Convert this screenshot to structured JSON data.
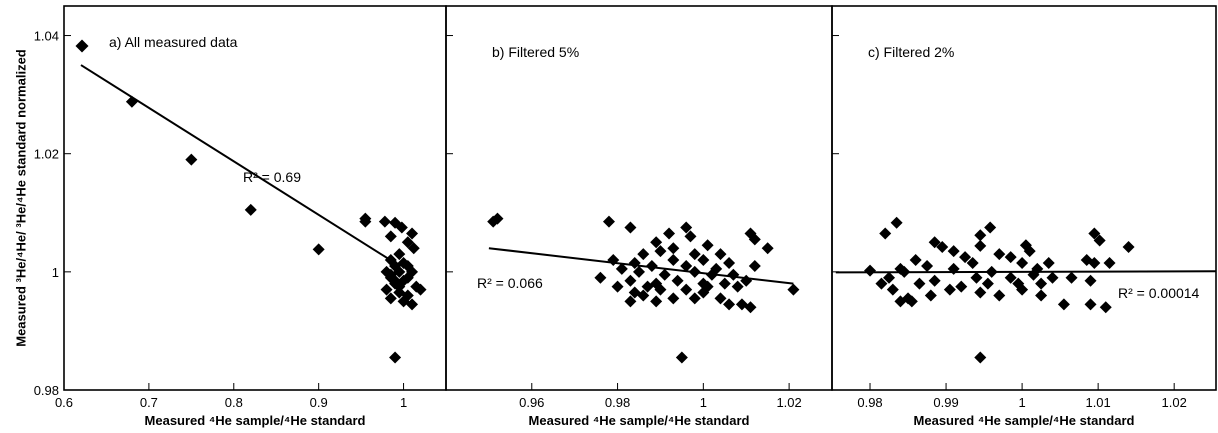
{
  "figure": {
    "y_axis_title": "Measured ³He/⁴He/ ³He/⁴He standard normalized",
    "legend_marker": "diamond"
  },
  "chart_data": [
    {
      "type": "scatter",
      "panel_label": "a) All measured data",
      "xlabel": "Measured ⁴He sample/⁴He standard",
      "xlim": [
        0.6,
        1.05
      ],
      "ylim": [
        0.98,
        1.045
      ],
      "x_ticks": [
        0.6,
        0.7,
        0.8,
        0.9,
        1.0
      ],
      "x_tick_labels": [
        "0.6",
        "0.7",
        "0.8",
        "0.9",
        "1"
      ],
      "y_ticks": [
        0.98,
        1.0,
        1.02,
        1.04
      ],
      "y_tick_labels": [
        "0.98",
        "1",
        "1.02",
        "1.04"
      ],
      "r2_label": "R² = 0.69",
      "fit": {
        "x": [
          0.62,
          0.99
        ],
        "y": [
          1.035,
          1.0015
        ]
      },
      "points": [
        [
          0.68,
          1.0288
        ],
        [
          0.75,
          1.019
        ],
        [
          0.82,
          1.0105
        ],
        [
          0.9,
          1.0038
        ],
        [
          0.955,
          1.0085
        ],
        [
          0.955,
          1.009
        ],
        [
          0.978,
          1.0085
        ],
        [
          0.99,
          1.0083
        ],
        [
          0.985,
          1.006
        ],
        [
          0.998,
          1.0075
        ],
        [
          1.01,
          1.0065
        ],
        [
          1.005,
          1.005
        ],
        [
          1.012,
          1.004
        ],
        [
          0.995,
          1.003
        ],
        [
          0.985,
          1.002
        ],
        [
          1.0,
          1.0015
        ],
        [
          0.99,
          1.001
        ],
        [
          1.005,
          1.001
        ],
        [
          0.98,
          1.0
        ],
        [
          0.995,
          1.0
        ],
        [
          1.01,
          1.0
        ],
        [
          0.985,
          0.999
        ],
        [
          1.0,
          0.9985
        ],
        [
          0.99,
          0.998
        ],
        [
          1.015,
          0.9975
        ],
        [
          1.02,
          0.997
        ],
        [
          0.98,
          0.997
        ],
        [
          0.995,
          0.9965
        ],
        [
          1.005,
          0.996
        ],
        [
          0.985,
          0.9955
        ],
        [
          1.0,
          0.995
        ],
        [
          1.01,
          0.9945
        ],
        [
          0.99,
          0.9985
        ],
        [
          0.985,
          0.9995
        ],
        [
          0.995,
          0.9975
        ],
        [
          1.005,
          0.999
        ],
        [
          0.99,
          0.9855
        ]
      ]
    },
    {
      "type": "scatter",
      "panel_label": "b) Filtered 5%",
      "xlabel": "Measured ⁴He sample/⁴He standard",
      "xlim": [
        0.94,
        1.03
      ],
      "ylim": [
        0.98,
        1.045
      ],
      "x_ticks": [
        0.96,
        0.98,
        1.0,
        1.02
      ],
      "x_tick_labels": [
        "0.96",
        "0.98",
        "1",
        "1.02"
      ],
      "y_ticks": [
        0.98,
        1.0,
        1.02,
        1.04
      ],
      "r2_label": "R² = 0.066",
      "fit": {
        "x": [
          0.95,
          1.021
        ],
        "y": [
          1.004,
          0.998
        ]
      },
      "points": [
        [
          0.951,
          1.0085
        ],
        [
          0.952,
          1.009
        ],
        [
          0.978,
          1.0085
        ],
        [
          0.983,
          1.0075
        ],
        [
          0.992,
          1.0065
        ],
        [
          0.996,
          1.0075
        ],
        [
          0.997,
          1.006
        ],
        [
          1.001,
          1.0045
        ],
        [
          1.011,
          1.0065
        ],
        [
          1.012,
          1.0055
        ],
        [
          1.015,
          1.004
        ],
        [
          0.989,
          1.005
        ],
        [
          0.993,
          1.004
        ],
        [
          0.986,
          1.003
        ],
        [
          0.99,
          1.0035
        ],
        [
          0.998,
          1.003
        ],
        [
          1.004,
          1.003
        ],
        [
          0.979,
          1.002
        ],
        [
          0.984,
          1.0015
        ],
        [
          0.993,
          1.002
        ],
        [
          1.0,
          1.002
        ],
        [
          1.006,
          1.0015
        ],
        [
          1.012,
          1.001
        ],
        [
          0.981,
          1.0005
        ],
        [
          0.988,
          1.001
        ],
        [
          0.996,
          1.001
        ],
        [
          1.003,
          1.0005
        ],
        [
          0.976,
          0.999
        ],
        [
          0.985,
          1.0
        ],
        [
          0.991,
          0.9995
        ],
        [
          0.998,
          1.0
        ],
        [
          1.002,
          0.9995
        ],
        [
          1.007,
          0.9995
        ],
        [
          0.983,
          0.9985
        ],
        [
          0.989,
          0.998
        ],
        [
          0.994,
          0.9985
        ],
        [
          1.0,
          0.998
        ],
        [
          1.005,
          0.998
        ],
        [
          1.01,
          0.9985
        ],
        [
          0.987,
          0.9975
        ],
        [
          0.996,
          0.997
        ],
        [
          1.001,
          0.9975
        ],
        [
          0.984,
          0.9965
        ],
        [
          0.99,
          0.997
        ],
        [
          1.0,
          0.9965
        ],
        [
          1.008,
          0.9975
        ],
        [
          0.98,
          0.9975
        ],
        [
          0.986,
          0.996
        ],
        [
          0.993,
          0.9955
        ],
        [
          0.998,
          0.9955
        ],
        [
          1.004,
          0.9955
        ],
        [
          0.983,
          0.995
        ],
        [
          0.989,
          0.995
        ],
        [
          1.006,
          0.9945
        ],
        [
          1.009,
          0.9945
        ],
        [
          1.011,
          0.994
        ],
        [
          1.021,
          0.997
        ],
        [
          0.995,
          0.9855
        ]
      ]
    },
    {
      "type": "scatter",
      "panel_label": "c) Filtered 2%",
      "xlabel": "Measured ⁴He sample/⁴He standard",
      "xlim": [
        0.975,
        1.0255
      ],
      "ylim": [
        0.98,
        1.045
      ],
      "x_ticks": [
        0.98,
        0.99,
        1.0,
        1.01,
        1.02
      ],
      "x_tick_labels": [
        "0.98",
        "0.99",
        "1",
        "1.01",
        "1.02"
      ],
      "y_ticks": [
        0.98,
        1.0,
        1.02,
        1.04
      ],
      "r2_label": "R² = 0.00014",
      "fit": {
        "x": [
          0.9755,
          1.0255
        ],
        "y": [
          0.9999,
          1.0001
        ]
      },
      "points": [
        [
          0.982,
          1.0065
        ],
        [
          0.9835,
          1.0083
        ],
        [
          0.9945,
          1.0062
        ],
        [
          0.9958,
          1.0075
        ],
        [
          1.0095,
          1.0065
        ],
        [
          1.0102,
          1.0053
        ],
        [
          1.014,
          1.0042
        ],
        [
          0.9885,
          1.005
        ],
        [
          0.9895,
          1.0042
        ],
        [
          0.9945,
          1.0044
        ],
        [
          1.0005,
          1.0045
        ],
        [
          0.991,
          1.0035
        ],
        [
          0.997,
          1.003
        ],
        [
          1.001,
          1.0035
        ],
        [
          0.986,
          1.002
        ],
        [
          0.9925,
          1.0025
        ],
        [
          0.9985,
          1.0025
        ],
        [
          1.0035,
          1.0015
        ],
        [
          1.0085,
          1.002
        ],
        [
          0.984,
          1.0005
        ],
        [
          0.9875,
          1.001
        ],
        [
          0.9935,
          1.0015
        ],
        [
          1.0,
          1.0015
        ],
        [
          1.0115,
          1.0015
        ],
        [
          0.98,
          1.0002
        ],
        [
          0.9845,
          1.0
        ],
        [
          0.991,
          1.0005
        ],
        [
          0.996,
          1.0
        ],
        [
          1.002,
          1.0005
        ],
        [
          1.0095,
          1.0015
        ],
        [
          0.9825,
          0.999
        ],
        [
          0.9885,
          0.9985
        ],
        [
          0.994,
          0.999
        ],
        [
          0.9985,
          0.999
        ],
        [
          1.0015,
          0.9995
        ],
        [
          1.004,
          0.999
        ],
        [
          0.9815,
          0.998
        ],
        [
          0.9865,
          0.998
        ],
        [
          0.992,
          0.9975
        ],
        [
          0.9955,
          0.998
        ],
        [
          0.9995,
          0.998
        ],
        [
          1.0025,
          0.998
        ],
        [
          1.0065,
          0.999
        ],
        [
          1.009,
          0.9985
        ],
        [
          0.983,
          0.997
        ],
        [
          0.9905,
          0.997
        ],
        [
          0.9945,
          0.9965
        ],
        [
          1.0,
          0.997
        ],
        [
          0.997,
          0.996
        ],
        [
          1.0025,
          0.996
        ],
        [
          0.985,
          0.9955
        ],
        [
          0.988,
          0.996
        ],
        [
          0.984,
          0.995
        ],
        [
          0.9855,
          0.995
        ],
        [
          1.0055,
          0.9945
        ],
        [
          1.009,
          0.9945
        ],
        [
          1.011,
          0.994
        ],
        [
          0.9945,
          0.9855
        ]
      ]
    }
  ]
}
